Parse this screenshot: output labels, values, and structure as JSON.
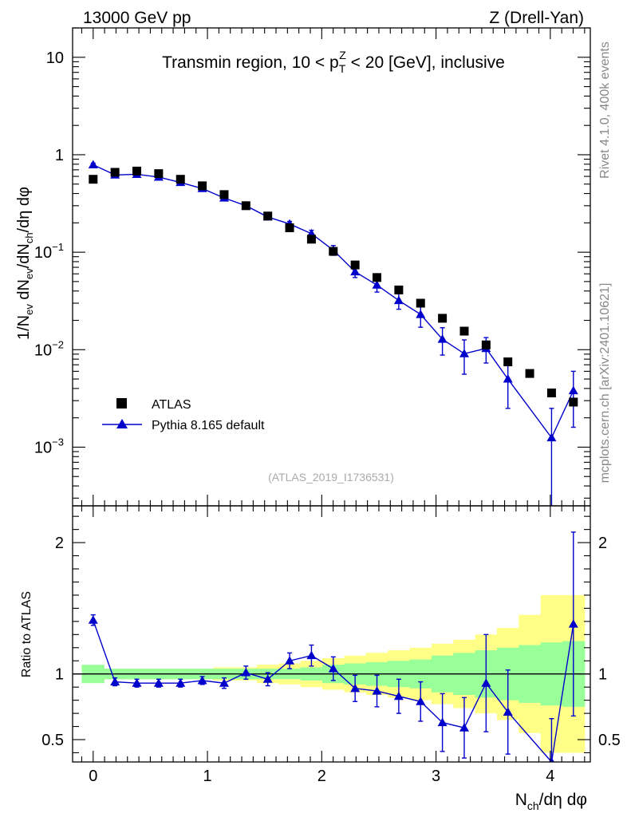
{
  "header": {
    "energy": "13000 GeV pp",
    "process": "Z (Drell-Yan)"
  },
  "side_labels": {
    "rivet": "Rivet 4.1.0,  400k events",
    "mcplots": "mcplots.cern.ch [arXiv:2401.10621]"
  },
  "chart_data": [
    {
      "type": "scatter",
      "panel": "main",
      "title": "Transmin region, 10 < p_T^Z < 20 [GeV], inclusive",
      "analysis_id": "(ATLAS_2019_I1736531)",
      "ylabel": "1/N_ev dN_ev/dN_ch/dη dφ",
      "yscale": "log",
      "ylim": [
        0.00025,
        20
      ],
      "xlim": [
        -0.18,
        4.35
      ],
      "y_ticks": [
        {
          "value": 10,
          "label": "10",
          "exp": ""
        },
        {
          "value": 1,
          "label": "1",
          "exp": ""
        },
        {
          "value": 0.1,
          "label": "10",
          "exp": "−1"
        },
        {
          "value": 0.01,
          "label": "10",
          "exp": "−2"
        },
        {
          "value": 0.001,
          "label": "10",
          "exp": "−3"
        }
      ],
      "legend": [
        {
          "name": "ATLAS",
          "marker": "square",
          "color": "#000000"
        },
        {
          "name": "Pythia 8.165 default",
          "marker": "triangle",
          "color": "#0000cc"
        }
      ],
      "series": [
        {
          "name": "ATLAS",
          "x": [
            0,
            0.191,
            0.382,
            0.573,
            0.764,
            0.955,
            1.146,
            1.337,
            1.528,
            1.719,
            1.91,
            2.101,
            2.292,
            2.483,
            2.674,
            2.865,
            3.056,
            3.247,
            3.438,
            3.629,
            3.82,
            4.011,
            4.202
          ],
          "y": [
            0.56,
            0.66,
            0.68,
            0.64,
            0.56,
            0.48,
            0.39,
            0.3,
            0.235,
            0.178,
            0.136,
            0.102,
            0.074,
            0.055,
            0.041,
            0.03,
            0.021,
            0.0155,
            0.0112,
            0.0075,
            0.0057,
            0.0036,
            0.0029
          ]
        },
        {
          "name": "Pythia 8.165 default",
          "x": [
            0,
            0.191,
            0.382,
            0.573,
            0.764,
            0.955,
            1.146,
            1.337,
            1.528,
            1.719,
            1.91,
            2.101,
            2.292,
            2.483,
            2.674,
            2.865,
            3.056,
            3.247,
            3.438,
            3.629,
            4.011,
            4.202
          ],
          "y": [
            0.79,
            0.62,
            0.63,
            0.59,
            0.52,
            0.45,
            0.36,
            0.3,
            0.23,
            0.195,
            0.155,
            0.105,
            0.063,
            0.046,
            0.032,
            0.023,
            0.0128,
            0.0091,
            0.0103,
            0.005,
            0.00125,
            0.0038
          ],
          "y_err": [
            0.03,
            0.02,
            0.02,
            0.02,
            0.02,
            0.02,
            0.02,
            0.015,
            0.012,
            0.012,
            0.013,
            0.012,
            0.008,
            0.007,
            0.006,
            0.006,
            0.004,
            0.0035,
            0.003,
            0.0025,
            0.00125,
            0.0022
          ]
        }
      ]
    },
    {
      "type": "line",
      "panel": "ratio",
      "ylabel": "Ratio to ATLAS",
      "ylim": [
        0.33,
        2.28
      ],
      "xlim": [
        -0.18,
        4.35
      ],
      "x_ticks": [
        0,
        1,
        2,
        3,
        4
      ],
      "xlabel_main": "N",
      "xlabel_sub": "ch",
      "xlabel_tail": "/dη dφ",
      "y_ticks": [
        0.5,
        1,
        2
      ],
      "reference_line": 1,
      "uncertainty_bands": {
        "edges": [
          -0.1,
          0.095,
          0.286,
          0.477,
          0.668,
          0.859,
          1.05,
          1.241,
          1.432,
          1.623,
          1.814,
          2.005,
          2.196,
          2.387,
          2.578,
          2.769,
          2.96,
          3.151,
          3.342,
          3.533,
          3.724,
          3.915,
          4.106,
          4.3
        ],
        "inner_low": [
          0.93,
          0.96,
          0.96,
          0.96,
          0.96,
          0.96,
          0.96,
          0.96,
          0.96,
          0.96,
          0.95,
          0.93,
          0.92,
          0.91,
          0.9,
          0.89,
          0.86,
          0.84,
          0.82,
          0.8,
          0.78,
          0.76,
          0.75
        ],
        "inner_high": [
          1.07,
          1.04,
          1.04,
          1.04,
          1.04,
          1.04,
          1.04,
          1.04,
          1.04,
          1.04,
          1.05,
          1.07,
          1.08,
          1.09,
          1.1,
          1.11,
          1.14,
          1.16,
          1.18,
          1.2,
          1.22,
          1.24,
          1.25
        ],
        "outer_low": [
          0.94,
          0.96,
          0.96,
          0.96,
          0.96,
          0.96,
          0.95,
          0.95,
          0.93,
          0.92,
          0.9,
          0.88,
          0.86,
          0.84,
          0.82,
          0.8,
          0.77,
          0.74,
          0.7,
          0.65,
          0.55,
          0.4,
          0.4
        ],
        "outer_high": [
          1.06,
          1.04,
          1.04,
          1.04,
          1.04,
          1.04,
          1.05,
          1.05,
          1.07,
          1.08,
          1.1,
          1.12,
          1.14,
          1.16,
          1.18,
          1.2,
          1.23,
          1.26,
          1.3,
          1.35,
          1.45,
          1.6,
          1.6
        ],
        "inner_color": "#99ff99",
        "outer_color": "#ffff88"
      },
      "series": [
        {
          "name": "Pythia 8.165 default",
          "x": [
            0,
            0.191,
            0.382,
            0.573,
            0.764,
            0.955,
            1.146,
            1.337,
            1.528,
            1.719,
            1.91,
            2.101,
            2.292,
            2.483,
            2.674,
            2.865,
            3.056,
            3.247,
            3.438,
            3.629,
            4.011,
            4.202
          ],
          "y": [
            1.41,
            0.94,
            0.93,
            0.93,
            0.93,
            0.95,
            0.93,
            1.01,
            0.96,
            1.1,
            1.14,
            1.04,
            0.89,
            0.87,
            0.83,
            0.79,
            0.63,
            0.59,
            0.93,
            0.71,
            0.33,
            1.38
          ],
          "y_err": [
            0.04,
            0.03,
            0.03,
            0.03,
            0.03,
            0.03,
            0.04,
            0.05,
            0.05,
            0.06,
            0.08,
            0.09,
            0.1,
            0.12,
            0.13,
            0.15,
            0.22,
            0.23,
            0.37,
            0.32,
            0.33,
            0.7
          ]
        }
      ]
    }
  ]
}
